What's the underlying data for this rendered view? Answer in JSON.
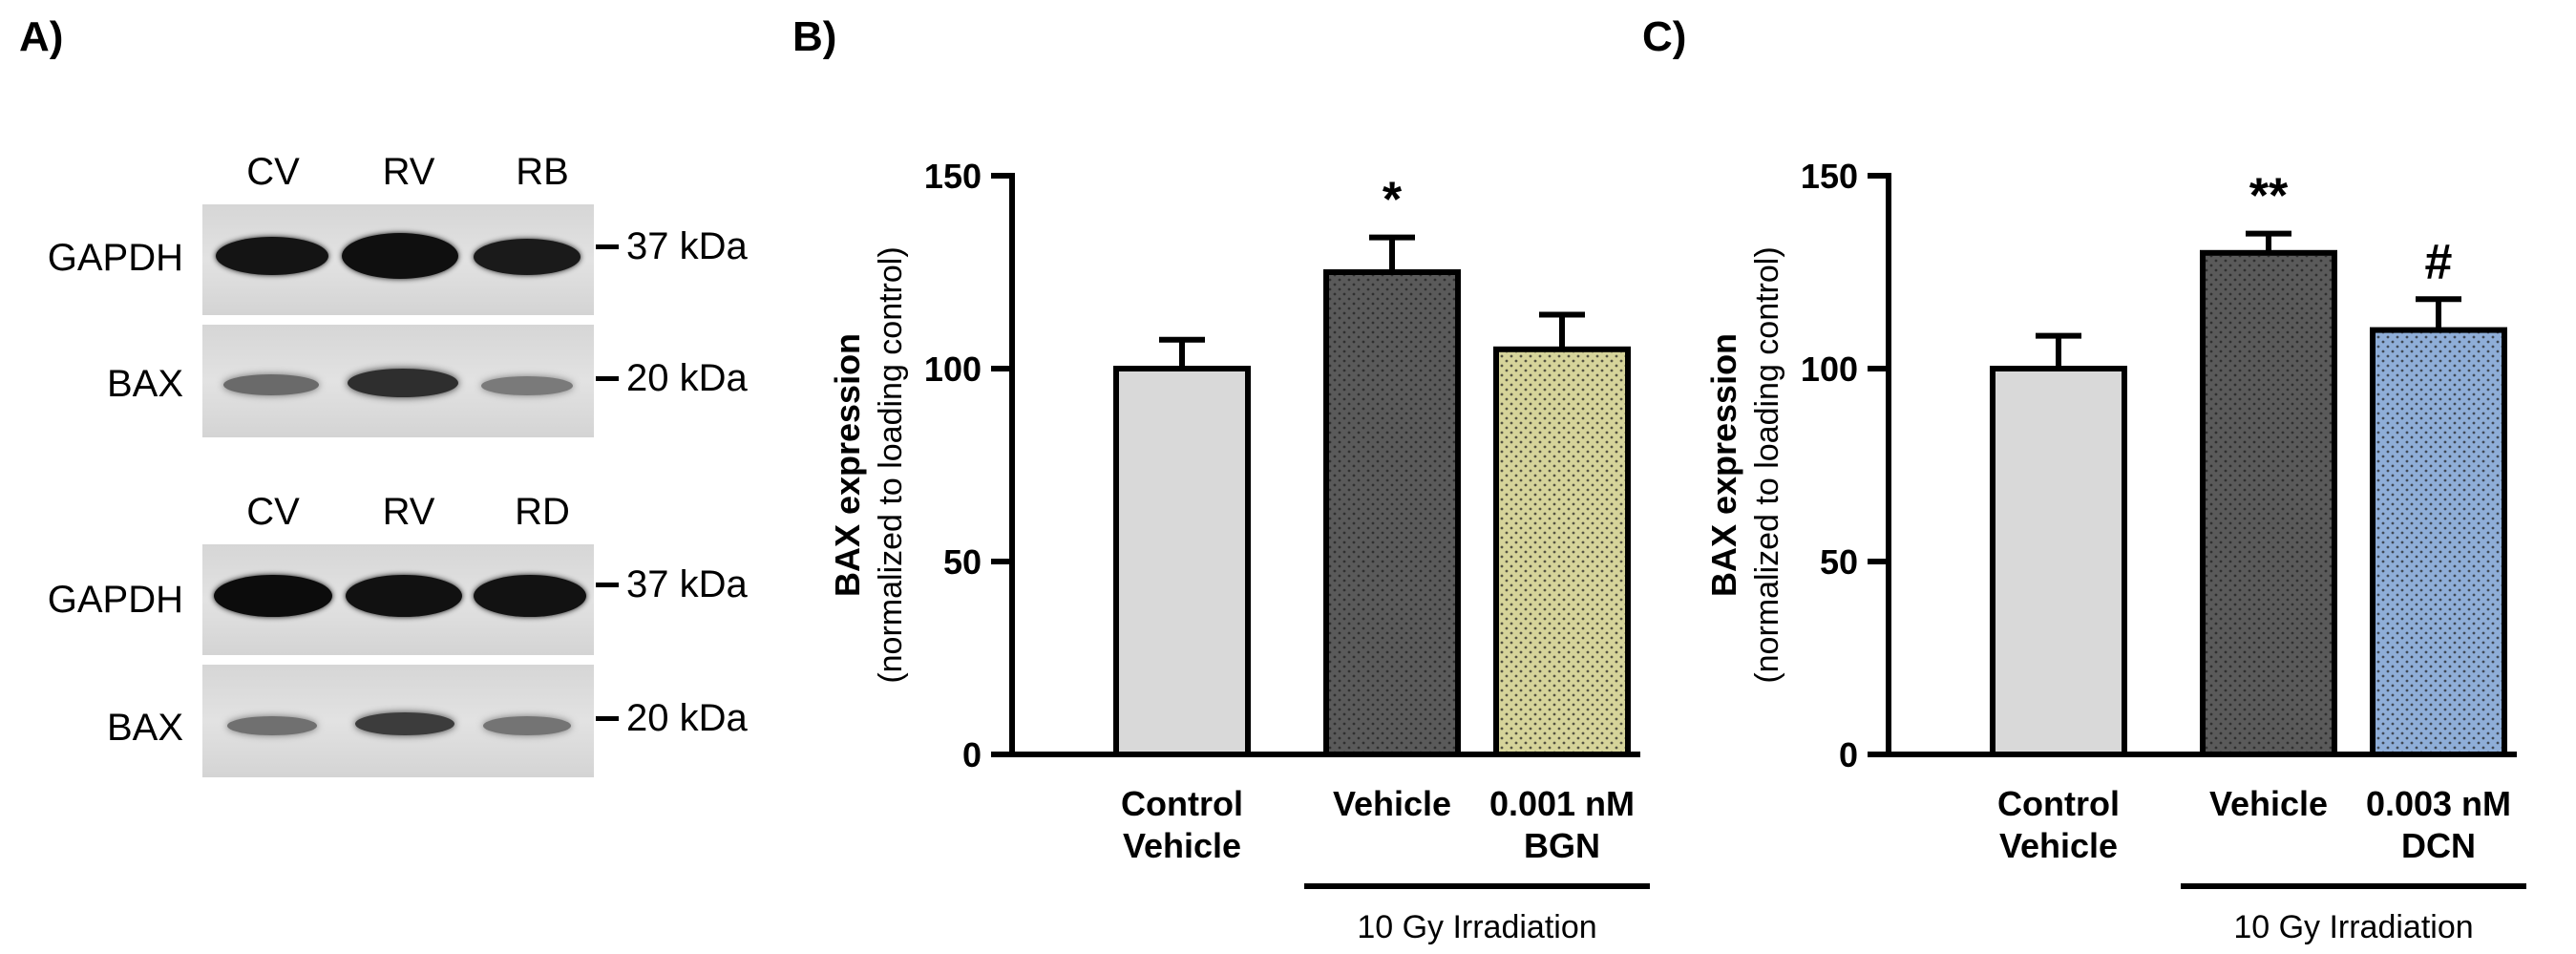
{
  "panel_labels": {
    "a": "A)",
    "b": "B)",
    "c": "C)"
  },
  "blot_top": {
    "lanes": [
      "CV",
      "RV",
      "RB"
    ],
    "rows": [
      {
        "label": "GAPDH",
        "marker": "37 kDa"
      },
      {
        "label": "BAX",
        "marker": "20 kDa"
      }
    ]
  },
  "blot_bottom": {
    "lanes": [
      "CV",
      "RV",
      "RD"
    ],
    "rows": [
      {
        "label": "GAPDH",
        "marker": "37 kDa"
      },
      {
        "label": "BAX",
        "marker": "20 kDa"
      }
    ]
  },
  "colors": {
    "control": "#d9d9d9",
    "vehicle": "#5a5a5a",
    "bgn": "#d6d49a",
    "dcn": "#8faed8"
  },
  "chart_data": [
    {
      "type": "bar",
      "panel": "B)",
      "ylabel": "BAX expression",
      "ylabel_sub": "(normalized to loading control)",
      "ylim": [
        0,
        150
      ],
      "yticks": [
        0,
        50,
        100,
        150
      ],
      "categories": [
        "Control Vehicle",
        "Vehicle",
        "0.001 nM BGN"
      ],
      "category_lines": [
        [
          "Control",
          "Vehicle"
        ],
        [
          "Vehicle"
        ],
        [
          "0.001 nM",
          "BGN"
        ]
      ],
      "values": [
        100,
        125,
        105
      ],
      "errors": [
        7.5,
        9,
        9
      ],
      "annotations": [
        "",
        "*",
        ""
      ],
      "group_label": "10 Gy Irradiation",
      "bar_colors": [
        "#d9d9d9",
        "#5a5a5a",
        "#d6d49a"
      ],
      "dotted": [
        false,
        true,
        true
      ]
    },
    {
      "type": "bar",
      "panel": "C)",
      "ylabel": "BAX expression",
      "ylabel_sub": "(normalized to loading control)",
      "ylim": [
        0,
        150
      ],
      "yticks": [
        0,
        50,
        100,
        150
      ],
      "categories": [
        "Control Vehicle",
        "Vehicle",
        "0.003 nM DCN"
      ],
      "category_lines": [
        [
          "Control",
          "Vehicle"
        ],
        [
          "Vehicle"
        ],
        [
          "0.003 nM",
          "DCN"
        ]
      ],
      "values": [
        100,
        130,
        110
      ],
      "errors": [
        8.5,
        5,
        8
      ],
      "annotations": [
        "",
        "**",
        "#"
      ],
      "group_label": "10 Gy Irradiation",
      "bar_colors": [
        "#d9d9d9",
        "#5a5a5a",
        "#8faed8"
      ],
      "dotted": [
        false,
        true,
        true
      ]
    }
  ]
}
